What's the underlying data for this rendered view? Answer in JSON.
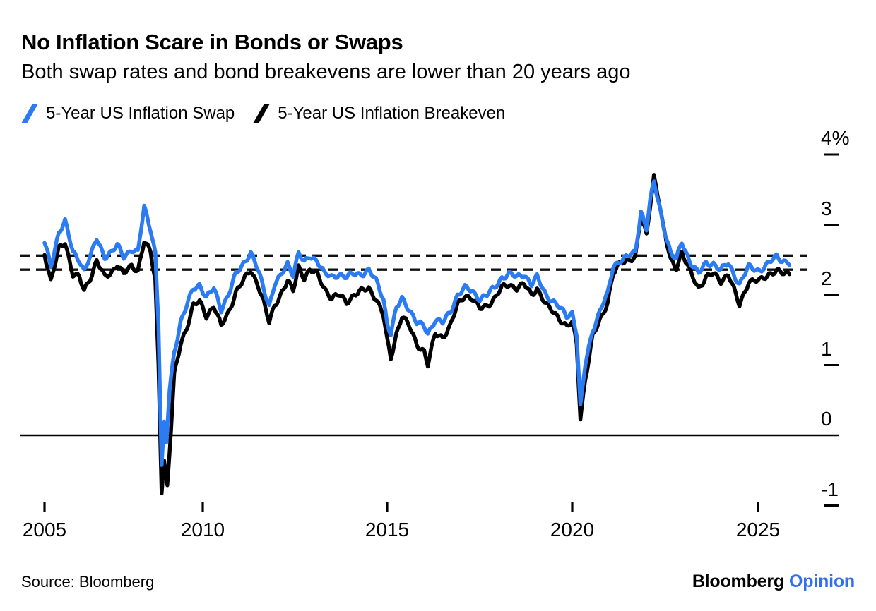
{
  "header": {
    "title": "No Inflation Scare in Bonds or Swaps",
    "subtitle": "Both swap rates and bond breakevens are lower than 20 years ago"
  },
  "legend": [
    {
      "label": "5-Year US Inflation Swap",
      "color": "#2b7bf3"
    },
    {
      "label": "5-Year US Inflation Breakeven",
      "color": "#000000"
    }
  ],
  "footer": {
    "source": "Source: Bloomberg",
    "logo": {
      "brand": "Bloomberg",
      "unit": "Opinion",
      "unit_color": "#2f6ff0"
    }
  },
  "chart_data": {
    "type": "line",
    "title": "No Inflation Scare in Bonds or Swaps",
    "subtitle": "Both swap rates and bond breakevens are lower than 20 years ago",
    "xlabel": "",
    "ylabel": "%",
    "xlim": [
      2005,
      2026.3
    ],
    "ylim": [
      -1.4,
      4.3
    ],
    "grid": false,
    "legend_position": "top",
    "y_ticks": [
      {
        "label": "4%",
        "value": 4
      },
      {
        "label": "3",
        "value": 3
      },
      {
        "label": "2",
        "value": 2
      },
      {
        "label": "1",
        "value": 1
      },
      {
        "label": "0",
        "value": 0
      },
      {
        "label": "-1",
        "value": -1
      }
    ],
    "x_ticks": [
      {
        "label": "2005",
        "year": 2005
      },
      {
        "label": "2010",
        "year": 2010
      },
      {
        "label": "2015",
        "year": 2015
      },
      {
        "label": "2020",
        "year": 2020
      },
      {
        "label": "2025",
        "year": 2025
      }
    ],
    "reference_lines": [
      2.56,
      2.36
    ],
    "zero_line": 0,
    "series": [
      {
        "name": "5-Year US Inflation Swap",
        "color": "#2b7bf3",
        "points": [
          [
            2005.0,
            2.75
          ],
          [
            2005.2,
            2.4
          ],
          [
            2005.45,
            2.9
          ],
          [
            2005.65,
            3.05
          ],
          [
            2005.9,
            2.6
          ],
          [
            2006.1,
            2.5
          ],
          [
            2006.25,
            2.35
          ],
          [
            2006.5,
            2.6
          ],
          [
            2006.65,
            2.8
          ],
          [
            2006.9,
            2.55
          ],
          [
            2007.1,
            2.6
          ],
          [
            2007.3,
            2.7
          ],
          [
            2007.5,
            2.55
          ],
          [
            2007.75,
            2.65
          ],
          [
            2007.95,
            2.6
          ],
          [
            2008.15,
            3.25
          ],
          [
            2008.35,
            2.95
          ],
          [
            2008.5,
            2.6
          ],
          [
            2008.6,
            1.6
          ],
          [
            2008.7,
            -0.45
          ],
          [
            2008.78,
            0.15
          ],
          [
            2008.85,
            -0.1
          ],
          [
            2008.95,
            0.65
          ],
          [
            2009.1,
            1.2
          ],
          [
            2009.3,
            1.6
          ],
          [
            2009.5,
            1.85
          ],
          [
            2009.7,
            2.1
          ],
          [
            2009.9,
            2.15
          ],
          [
            2010.1,
            1.95
          ],
          [
            2010.3,
            2.1
          ],
          [
            2010.5,
            1.8
          ],
          [
            2010.7,
            2.0
          ],
          [
            2010.9,
            2.3
          ],
          [
            2011.1,
            2.45
          ],
          [
            2011.3,
            2.6
          ],
          [
            2011.5,
            2.35
          ],
          [
            2011.65,
            2.1
          ],
          [
            2011.8,
            1.85
          ],
          [
            2011.95,
            2.15
          ],
          [
            2012.1,
            2.25
          ],
          [
            2012.3,
            2.45
          ],
          [
            2012.45,
            2.3
          ],
          [
            2012.6,
            2.6
          ],
          [
            2012.75,
            2.45
          ],
          [
            2012.9,
            2.55
          ],
          [
            2013.1,
            2.5
          ],
          [
            2013.3,
            2.3
          ],
          [
            2013.5,
            2.25
          ],
          [
            2013.7,
            2.3
          ],
          [
            2013.9,
            2.25
          ],
          [
            2014.1,
            2.3
          ],
          [
            2014.3,
            2.3
          ],
          [
            2014.5,
            2.35
          ],
          [
            2014.7,
            2.2
          ],
          [
            2014.9,
            1.95
          ],
          [
            2015.0,
            1.6
          ],
          [
            2015.1,
            1.45
          ],
          [
            2015.25,
            1.8
          ],
          [
            2015.4,
            1.95
          ],
          [
            2015.6,
            1.8
          ],
          [
            2015.8,
            1.6
          ],
          [
            2016.0,
            1.55
          ],
          [
            2016.1,
            1.45
          ],
          [
            2016.3,
            1.65
          ],
          [
            2016.5,
            1.6
          ],
          [
            2016.7,
            1.75
          ],
          [
            2016.9,
            2.0
          ],
          [
            2017.1,
            2.1
          ],
          [
            2017.3,
            2.05
          ],
          [
            2017.5,
            1.95
          ],
          [
            2017.7,
            2.0
          ],
          [
            2017.9,
            2.1
          ],
          [
            2018.1,
            2.25
          ],
          [
            2018.3,
            2.3
          ],
          [
            2018.5,
            2.25
          ],
          [
            2018.7,
            2.3
          ],
          [
            2018.9,
            2.15
          ],
          [
            2019.05,
            2.25
          ],
          [
            2019.3,
            2.0
          ],
          [
            2019.6,
            1.85
          ],
          [
            2019.85,
            1.7
          ],
          [
            2020.0,
            1.75
          ],
          [
            2020.12,
            1.45
          ],
          [
            2020.22,
            0.4
          ],
          [
            2020.35,
            1.0
          ],
          [
            2020.55,
            1.5
          ],
          [
            2020.8,
            1.85
          ],
          [
            2020.95,
            2.0
          ],
          [
            2021.1,
            2.4
          ],
          [
            2021.3,
            2.5
          ],
          [
            2021.5,
            2.55
          ],
          [
            2021.7,
            2.6
          ],
          [
            2021.85,
            3.2
          ],
          [
            2022.0,
            2.95
          ],
          [
            2022.1,
            3.35
          ],
          [
            2022.2,
            3.6
          ],
          [
            2022.35,
            3.25
          ],
          [
            2022.45,
            3.0
          ],
          [
            2022.65,
            2.6
          ],
          [
            2022.8,
            2.5
          ],
          [
            2022.95,
            2.75
          ],
          [
            2023.15,
            2.5
          ],
          [
            2023.4,
            2.3
          ],
          [
            2023.6,
            2.45
          ],
          [
            2023.8,
            2.45
          ],
          [
            2024.0,
            2.35
          ],
          [
            2024.2,
            2.45
          ],
          [
            2024.5,
            2.15
          ],
          [
            2024.75,
            2.4
          ],
          [
            2025.05,
            2.35
          ],
          [
            2025.3,
            2.45
          ],
          [
            2025.5,
            2.55
          ],
          [
            2025.65,
            2.5
          ],
          [
            2025.85,
            2.45
          ]
        ]
      },
      {
        "name": "5-Year US Inflation Breakeven",
        "color": "#000000",
        "points": [
          [
            2005.0,
            2.6
          ],
          [
            2005.2,
            2.2
          ],
          [
            2005.45,
            2.65
          ],
          [
            2005.65,
            2.75
          ],
          [
            2005.9,
            2.3
          ],
          [
            2006.1,
            2.25
          ],
          [
            2006.25,
            2.05
          ],
          [
            2006.5,
            2.3
          ],
          [
            2006.65,
            2.5
          ],
          [
            2006.9,
            2.25
          ],
          [
            2007.1,
            2.3
          ],
          [
            2007.3,
            2.45
          ],
          [
            2007.5,
            2.3
          ],
          [
            2007.75,
            2.4
          ],
          [
            2007.95,
            2.35
          ],
          [
            2008.15,
            2.78
          ],
          [
            2008.35,
            2.6
          ],
          [
            2008.5,
            2.2
          ],
          [
            2008.6,
            1.0
          ],
          [
            2008.7,
            -0.78
          ],
          [
            2008.78,
            -0.35
          ],
          [
            2008.88,
            -0.72
          ],
          [
            2009.0,
            0.1
          ],
          [
            2009.1,
            0.85
          ],
          [
            2009.3,
            1.3
          ],
          [
            2009.5,
            1.55
          ],
          [
            2009.7,
            1.85
          ],
          [
            2009.9,
            1.9
          ],
          [
            2010.1,
            1.7
          ],
          [
            2010.3,
            1.85
          ],
          [
            2010.5,
            1.55
          ],
          [
            2010.7,
            1.75
          ],
          [
            2010.9,
            2.05
          ],
          [
            2011.1,
            2.2
          ],
          [
            2011.3,
            2.35
          ],
          [
            2011.5,
            2.15
          ],
          [
            2011.65,
            1.9
          ],
          [
            2011.8,
            1.6
          ],
          [
            2011.95,
            1.85
          ],
          [
            2012.1,
            2.0
          ],
          [
            2012.3,
            2.2
          ],
          [
            2012.45,
            2.05
          ],
          [
            2012.6,
            2.4
          ],
          [
            2012.75,
            2.25
          ],
          [
            2012.9,
            2.35
          ],
          [
            2013.1,
            2.3
          ],
          [
            2013.3,
            2.1
          ],
          [
            2013.5,
            1.95
          ],
          [
            2013.7,
            2.0
          ],
          [
            2013.9,
            1.9
          ],
          [
            2014.1,
            2.0
          ],
          [
            2014.3,
            2.05
          ],
          [
            2014.5,
            2.1
          ],
          [
            2014.7,
            1.95
          ],
          [
            2014.9,
            1.7
          ],
          [
            2015.0,
            1.35
          ],
          [
            2015.1,
            1.1
          ],
          [
            2015.25,
            1.45
          ],
          [
            2015.4,
            1.7
          ],
          [
            2015.6,
            1.55
          ],
          [
            2015.8,
            1.3
          ],
          [
            2016.0,
            1.2
          ],
          [
            2016.1,
            1.0
          ],
          [
            2016.3,
            1.45
          ],
          [
            2016.5,
            1.4
          ],
          [
            2016.7,
            1.55
          ],
          [
            2016.9,
            1.85
          ],
          [
            2017.1,
            2.0
          ],
          [
            2017.3,
            1.95
          ],
          [
            2017.5,
            1.8
          ],
          [
            2017.7,
            1.85
          ],
          [
            2017.9,
            1.95
          ],
          [
            2018.1,
            2.1
          ],
          [
            2018.3,
            2.15
          ],
          [
            2018.5,
            2.1
          ],
          [
            2018.7,
            2.15
          ],
          [
            2018.9,
            2.0
          ],
          [
            2019.05,
            2.1
          ],
          [
            2019.3,
            1.85
          ],
          [
            2019.6,
            1.7
          ],
          [
            2019.85,
            1.55
          ],
          [
            2020.0,
            1.6
          ],
          [
            2020.12,
            1.3
          ],
          [
            2020.22,
            0.25
          ],
          [
            2020.35,
            0.8
          ],
          [
            2020.55,
            1.4
          ],
          [
            2020.8,
            1.7
          ],
          [
            2020.95,
            1.9
          ],
          [
            2021.1,
            2.3
          ],
          [
            2021.3,
            2.45
          ],
          [
            2021.5,
            2.5
          ],
          [
            2021.7,
            2.55
          ],
          [
            2021.85,
            3.1
          ],
          [
            2022.0,
            2.85
          ],
          [
            2022.1,
            3.3
          ],
          [
            2022.2,
            3.7
          ],
          [
            2022.35,
            3.3
          ],
          [
            2022.45,
            2.95
          ],
          [
            2022.65,
            2.5
          ],
          [
            2022.8,
            2.4
          ],
          [
            2022.95,
            2.6
          ],
          [
            2023.15,
            2.35
          ],
          [
            2023.4,
            2.1
          ],
          [
            2023.6,
            2.25
          ],
          [
            2023.8,
            2.3
          ],
          [
            2024.0,
            2.2
          ],
          [
            2024.2,
            2.3
          ],
          [
            2024.5,
            1.85
          ],
          [
            2024.75,
            2.2
          ],
          [
            2025.05,
            2.2
          ],
          [
            2025.3,
            2.3
          ],
          [
            2025.5,
            2.35
          ],
          [
            2025.65,
            2.3
          ],
          [
            2025.85,
            2.3
          ]
        ]
      }
    ]
  }
}
